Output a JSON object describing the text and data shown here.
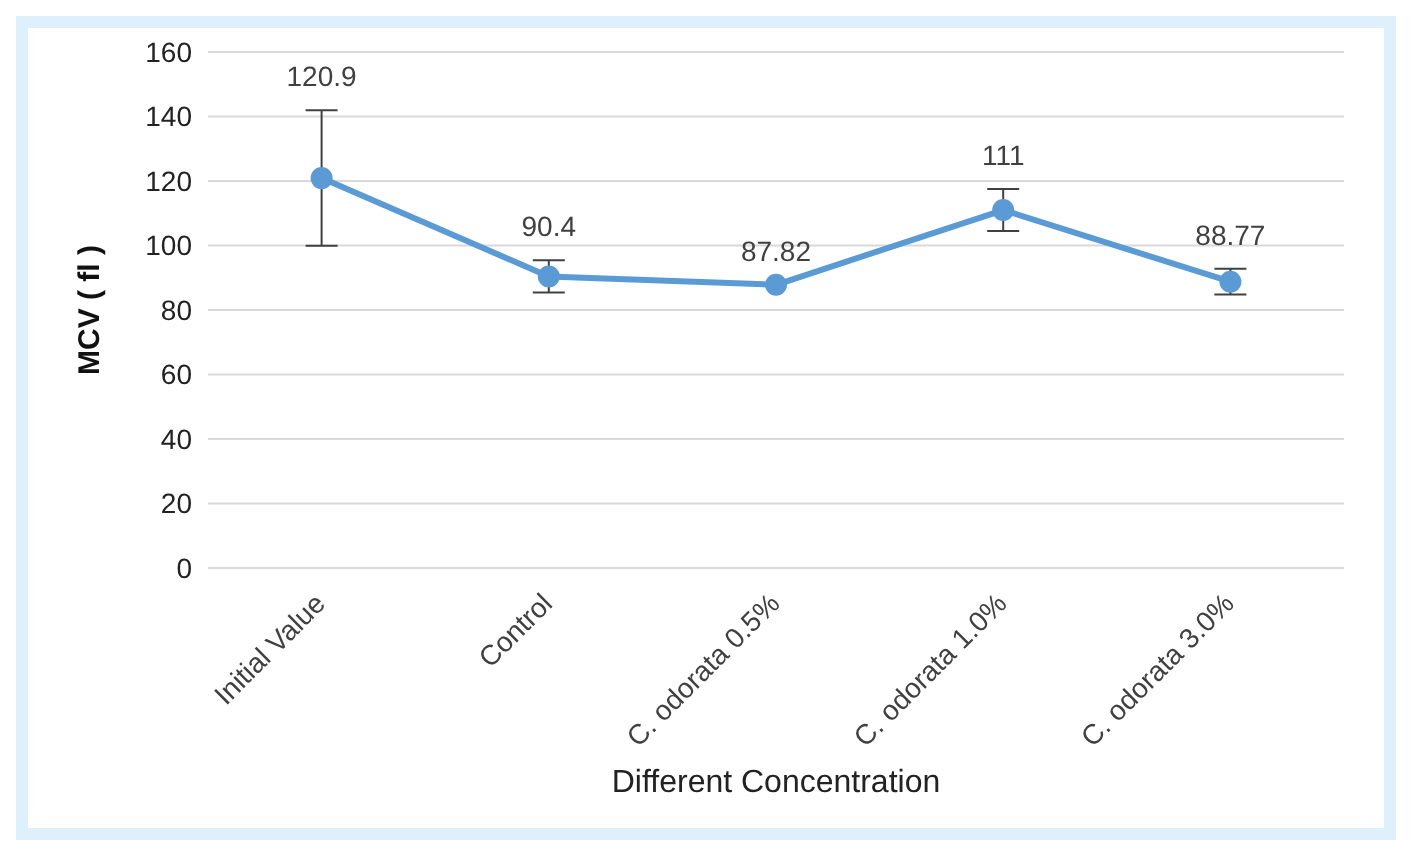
{
  "chart_data": {
    "type": "line",
    "xlabel": "Different Concentration",
    "ylabel": "MCV ( fl )",
    "categories": [
      "Initial Value",
      "Control",
      "C. odorata 0.5%",
      "C. odorata 1.0%",
      "C. odorata 3.0%"
    ],
    "values": [
      120.9,
      90.4,
      87.82,
      111,
      88.77
    ],
    "errors": [
      21,
      5,
      null,
      6.5,
      4
    ],
    "color": "#5b9bd5",
    "ylim": [
      0,
      160
    ],
    "yticks": [
      0,
      20,
      40,
      60,
      80,
      100,
      120,
      140,
      160
    ],
    "grid": "y",
    "marker": "circle",
    "line_style": "solid",
    "data_labels": true
  }
}
